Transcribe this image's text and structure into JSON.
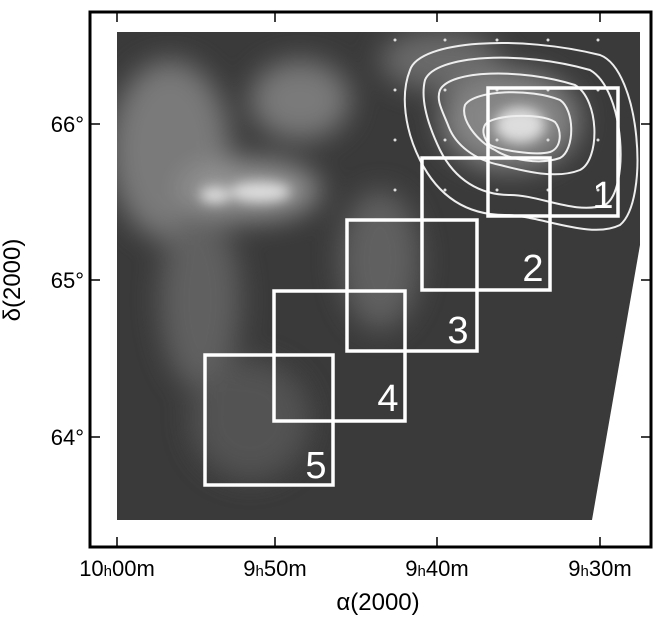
{
  "figure": {
    "x_axis": {
      "label": "α(2000)",
      "ticks": [
        {
          "hours": "10",
          "unit_h": "h",
          "minutes": "00m"
        },
        {
          "hours": "9",
          "unit_h": "h",
          "minutes": "50m"
        },
        {
          "hours": "9",
          "unit_h": "h",
          "minutes": "40m"
        },
        {
          "hours": "9",
          "unit_h": "h",
          "minutes": "30m"
        }
      ]
    },
    "y_axis": {
      "label": "δ(2000)",
      "ticks": [
        "66°",
        "65°",
        "64°"
      ]
    },
    "fields": [
      {
        "label": "1"
      },
      {
        "label": "2"
      },
      {
        "label": "3"
      },
      {
        "label": "4"
      },
      {
        "label": "5"
      }
    ]
  }
}
